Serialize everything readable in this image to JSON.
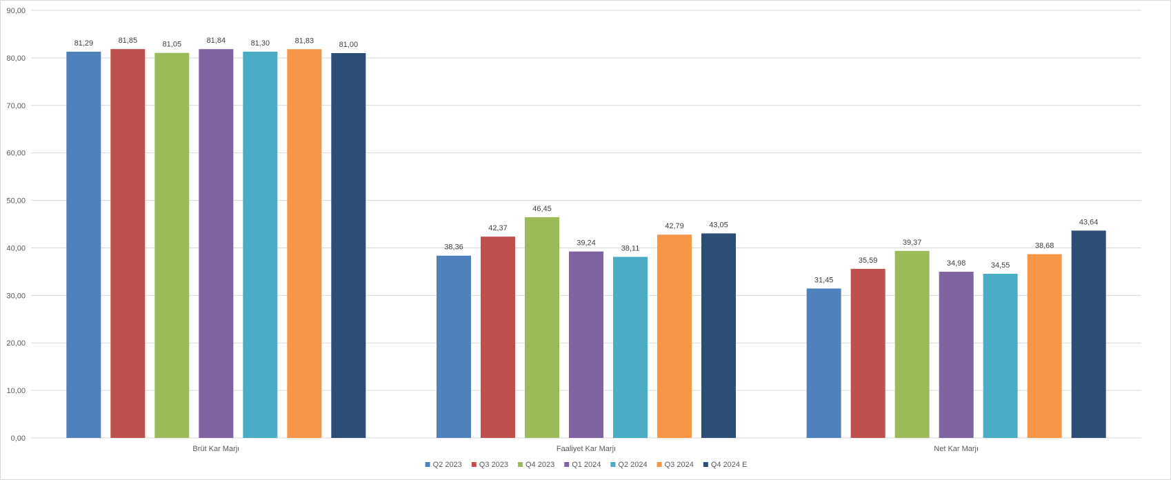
{
  "chart_data": {
    "type": "bar",
    "categories": [
      "Brüt Kar Marjı",
      "Faaliyet Kar Marjı",
      "Net Kar Marjı"
    ],
    "series": [
      {
        "name": "Q2 2023",
        "color": "#4F81BD",
        "values": [
          81.29,
          38.36,
          31.45
        ],
        "labels": [
          "81,29",
          "38,36",
          "31,45"
        ]
      },
      {
        "name": "Q3 2023",
        "color": "#C0504D",
        "values": [
          81.85,
          42.37,
          35.59
        ],
        "labels": [
          "81,85",
          "42,37",
          "35,59"
        ]
      },
      {
        "name": "Q4 2023",
        "color": "#9BBB59",
        "values": [
          81.05,
          46.45,
          39.37
        ],
        "labels": [
          "81,05",
          "46,45",
          "39,37"
        ]
      },
      {
        "name": "Q1 2024",
        "color": "#8064A2",
        "values": [
          81.84,
          39.24,
          34.98
        ],
        "labels": [
          "81,84",
          "39,24",
          "34,98"
        ]
      },
      {
        "name": "Q2 2024",
        "color": "#4BACC6",
        "values": [
          81.3,
          38.11,
          34.55
        ],
        "labels": [
          "81,30",
          "38,11",
          "34,55"
        ]
      },
      {
        "name": "Q3 2024",
        "color": "#F79646",
        "values": [
          81.83,
          42.79,
          38.68
        ],
        "labels": [
          "81,83",
          "42,79",
          "38,68"
        ]
      },
      {
        "name": "Q4 2024 E",
        "color": "#2C4D75",
        "values": [
          81.0,
          43.05,
          43.64
        ],
        "labels": [
          "81,00",
          "43,05",
          "43,64"
        ]
      }
    ],
    "ylim": [
      0,
      90
    ],
    "yticks": [
      0,
      10,
      20,
      30,
      40,
      50,
      60,
      70,
      80,
      90
    ],
    "ytick_labels": [
      "0,00",
      "10,00",
      "20,00",
      "30,00",
      "40,00",
      "50,00",
      "60,00",
      "70,00",
      "80,00",
      "90,00"
    ],
    "grid": true,
    "legend_position": "bottom",
    "title": "",
    "xlabel": "",
    "ylabel": ""
  }
}
